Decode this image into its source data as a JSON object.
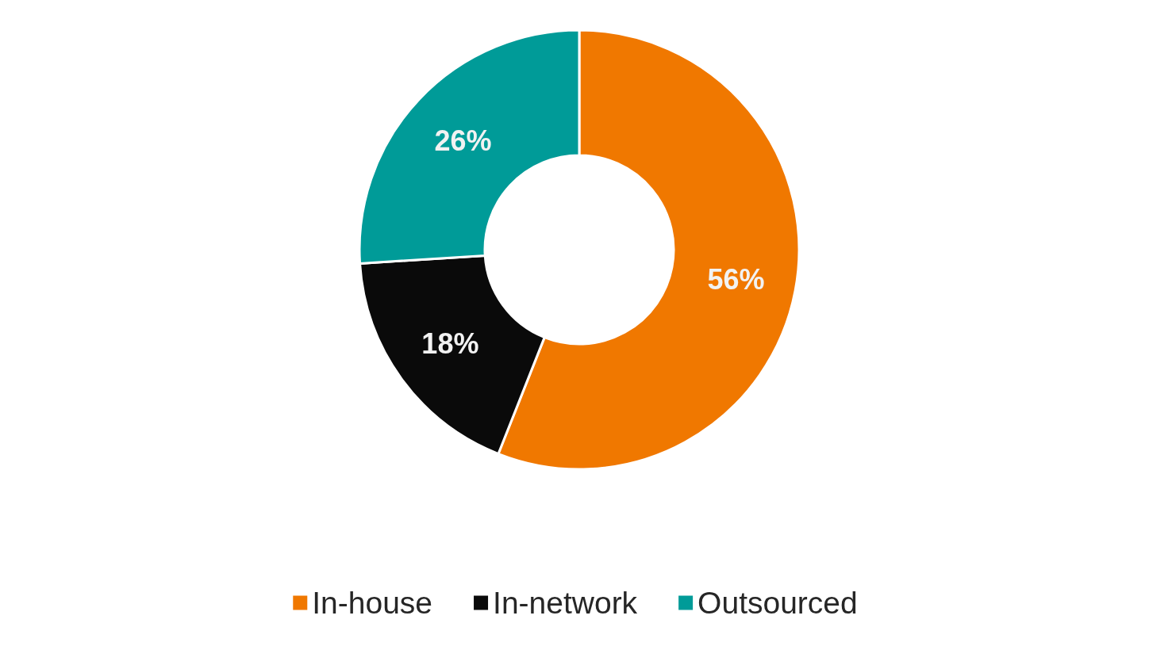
{
  "chart_data": {
    "type": "donut",
    "categories": [
      "In-house",
      "In-network",
      "Outsourced"
    ],
    "values": [
      56,
      18,
      26
    ],
    "colors": [
      "#f07800",
      "#0a0a0a",
      "#009b98"
    ],
    "value_labels": [
      "56%",
      "18%",
      "26%"
    ],
    "legend": "bottom"
  }
}
